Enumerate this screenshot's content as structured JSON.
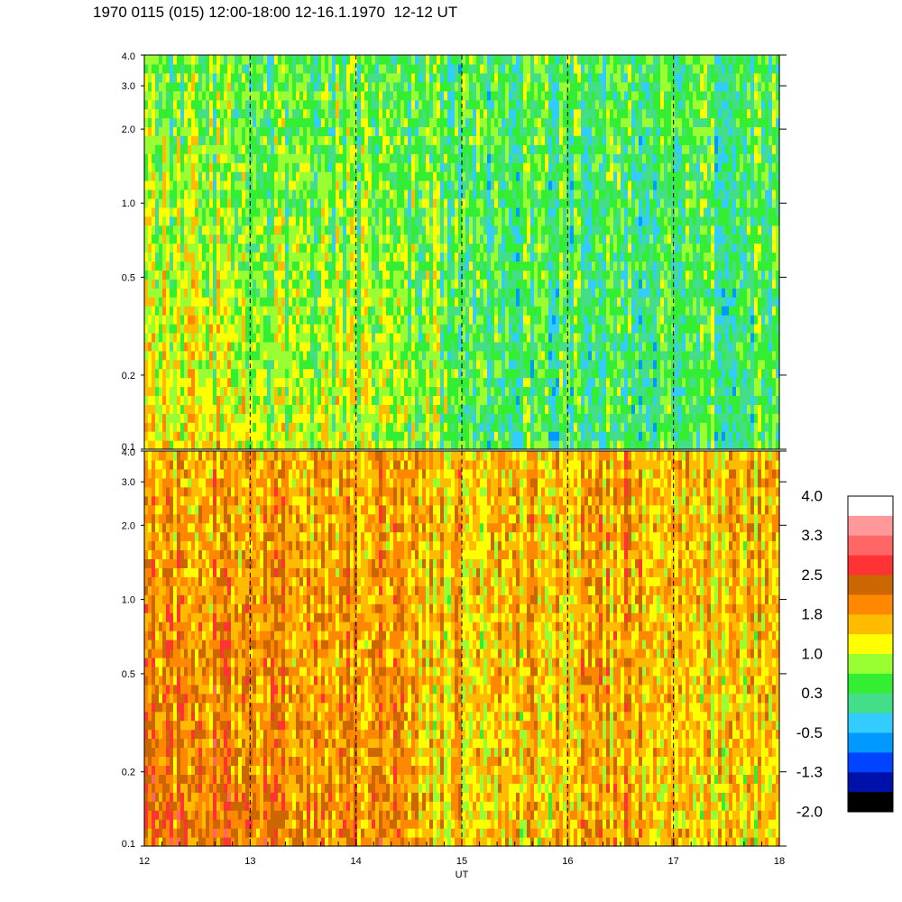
{
  "title": "1970 0115 (015) 12:00-18:00 12-16.1.1970  12-12 UT",
  "chart_data": [
    {
      "type": "heatmap",
      "panel": "upper",
      "y_scale": "log",
      "ylim": [
        0.1,
        4.0
      ],
      "y_ticks": [
        "4.0",
        "3.0",
        "2.0",
        "1.0",
        "0.5",
        "0.2",
        "0.1"
      ],
      "xlim": [
        12,
        18
      ],
      "x_hour_markers": [
        13,
        14,
        15,
        16,
        17
      ],
      "dominant_levels": [
        {
          "x_from": 12,
          "x_to": 13,
          "low_freq": 1.2,
          "high_freq": 0.5
        },
        {
          "x_from": 13,
          "x_to": 14.5,
          "low_freq": 0.9,
          "high_freq": 0.4
        },
        {
          "x_from": 14.5,
          "x_to": 15,
          "low_freq": 0.7,
          "high_freq": 0.4
        },
        {
          "x_from": 15,
          "x_to": 18,
          "low_freq": 0.3,
          "high_freq": 0.4
        }
      ]
    },
    {
      "type": "heatmap",
      "panel": "lower",
      "y_scale": "log",
      "ylim": [
        0.1,
        4.0
      ],
      "y_ticks": [
        "4.0",
        "3.0",
        "2.0",
        "1.0",
        "0.5",
        "0.2",
        "0.1"
      ],
      "xlim": [
        12,
        18
      ],
      "x_ticks": [
        "12",
        "13",
        "14",
        "15",
        "16",
        "17",
        "18"
      ],
      "xlabel": "UT",
      "dominant_levels": [
        {
          "x_from": 12,
          "x_to": 13,
          "low_freq": 2.2,
          "high_freq": 1.7
        },
        {
          "x_from": 13,
          "x_to": 14.5,
          "low_freq": 2.0,
          "high_freq": 1.7
        },
        {
          "x_from": 14.5,
          "x_to": 16,
          "low_freq": 1.5,
          "high_freq": 1.6
        },
        {
          "x_from": 16,
          "x_to": 17,
          "low_freq": 1.7,
          "high_freq": 1.7
        },
        {
          "x_from": 17,
          "x_to": 18,
          "low_freq": 1.4,
          "high_freq": 1.6
        }
      ]
    }
  ],
  "colorbar": {
    "labels": [
      "4.0",
      "3.3",
      "2.5",
      "1.8",
      "1.0",
      "0.3",
      "-0.5",
      "-1.3",
      "-2.0"
    ],
    "colors": [
      "#ffffff",
      "#ff9999",
      "#ff6666",
      "#ff3333",
      "#cc6600",
      "#ff8800",
      "#ffbb00",
      "#ffff00",
      "#99ff33",
      "#33ee33",
      "#44dd88",
      "#33ccff",
      "#0099ff",
      "#0044ff",
      "#0011aa",
      "#000000"
    ]
  }
}
